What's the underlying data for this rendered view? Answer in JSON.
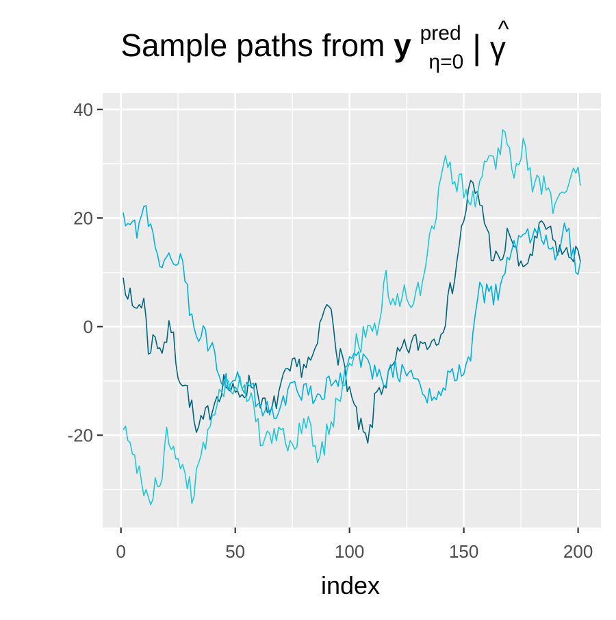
{
  "chart_data": {
    "type": "line",
    "title": {
      "prefix": "Sample paths from ",
      "symbol": "y",
      "superscript": "pred",
      "subscript": "η=0",
      "condition_bar": "|",
      "conditioned_on": "γ",
      "hat": "^"
    },
    "xlabel": "index",
    "ylabel": "",
    "xlim": [
      -8,
      210
    ],
    "ylim": [
      -37,
      43
    ],
    "x_ticks": [
      0,
      50,
      100,
      150,
      200
    ],
    "x_tick_labels": [
      "0",
      "50",
      "100",
      "150",
      "200"
    ],
    "y_ticks": [
      40,
      20,
      0,
      -20
    ],
    "y_tick_labels": [
      "40",
      "20",
      "0",
      "-20"
    ],
    "grid": true,
    "legend": "none",
    "panel_background": "#ebebeb",
    "grid_color": "#ffffff",
    "series": [
      {
        "color": "#00647f",
        "anchors": [
          [
            1,
            9
          ],
          [
            3,
            7
          ],
          [
            5,
            3
          ],
          [
            10,
            5
          ],
          [
            12,
            -4
          ],
          [
            15,
            -2
          ],
          [
            18,
            -4
          ],
          [
            22,
            0
          ],
          [
            25,
            -8
          ],
          [
            30,
            -13
          ],
          [
            33,
            -20
          ],
          [
            38,
            -16
          ],
          [
            45,
            -10
          ],
          [
            50,
            -13
          ],
          [
            58,
            -10
          ],
          [
            65,
            -17
          ],
          [
            70,
            -11
          ],
          [
            75,
            -8
          ],
          [
            80,
            -7
          ],
          [
            85,
            -6
          ],
          [
            88,
            2
          ],
          [
            92,
            4
          ],
          [
            95,
            -5
          ],
          [
            98,
            -8
          ],
          [
            103,
            -17
          ],
          [
            108,
            -22
          ],
          [
            112,
            -12
          ],
          [
            118,
            -9
          ],
          [
            122,
            -5
          ],
          [
            128,
            -3
          ],
          [
            133,
            -3
          ],
          [
            138,
            -2
          ],
          [
            142,
            2
          ],
          [
            146,
            10
          ],
          [
            150,
            20
          ],
          [
            153,
            26
          ],
          [
            158,
            22
          ],
          [
            162,
            14
          ],
          [
            166,
            11
          ],
          [
            170,
            18
          ],
          [
            175,
            10
          ],
          [
            180,
            14
          ],
          [
            185,
            19
          ],
          [
            190,
            15
          ],
          [
            195,
            13
          ],
          [
            199,
            14
          ],
          [
            201,
            12
          ]
        ],
        "noise": 2.2,
        "seed": 7
      },
      {
        "color": "#00b0e0",
        "anchors": [
          [
            1,
            21
          ],
          [
            4,
            19
          ],
          [
            7,
            17
          ],
          [
            10,
            22
          ],
          [
            13,
            19
          ],
          [
            16,
            13
          ],
          [
            20,
            12
          ],
          [
            24,
            13
          ],
          [
            27,
            13
          ],
          [
            30,
            3
          ],
          [
            32,
            -2
          ],
          [
            35,
            -1
          ],
          [
            39,
            -3
          ],
          [
            42,
            -8
          ],
          [
            45,
            -10
          ],
          [
            52,
            -10
          ],
          [
            58,
            -12
          ],
          [
            62,
            -15
          ],
          [
            70,
            -15
          ],
          [
            75,
            -10
          ],
          [
            80,
            -12
          ],
          [
            85,
            -13
          ],
          [
            90,
            -11
          ],
          [
            96,
            -10
          ],
          [
            100,
            -6
          ],
          [
            105,
            -6
          ],
          [
            110,
            -8
          ],
          [
            115,
            -10
          ],
          [
            120,
            -8
          ],
          [
            125,
            -9
          ],
          [
            130,
            -10
          ],
          [
            135,
            -13
          ],
          [
            140,
            -11
          ],
          [
            145,
            -9
          ],
          [
            150,
            -9
          ],
          [
            153,
            -5
          ],
          [
            156,
            7
          ],
          [
            160,
            6
          ],
          [
            165,
            6
          ],
          [
            170,
            12
          ],
          [
            175,
            17
          ],
          [
            180,
            17
          ],
          [
            185,
            16
          ],
          [
            190,
            14
          ],
          [
            195,
            18
          ],
          [
            199,
            11
          ],
          [
            201,
            12
          ]
        ],
        "noise": 2.0,
        "seed": 19
      },
      {
        "color": "#1ec8d8",
        "anchors": [
          [
            1,
            -19
          ],
          [
            4,
            -22
          ],
          [
            7,
            -27
          ],
          [
            10,
            -29
          ],
          [
            12,
            -33
          ],
          [
            15,
            -30
          ],
          [
            18,
            -27
          ],
          [
            20,
            -20
          ],
          [
            24,
            -23
          ],
          [
            28,
            -26
          ],
          [
            31,
            -31
          ],
          [
            34,
            -25
          ],
          [
            38,
            -20
          ],
          [
            42,
            -13
          ],
          [
            47,
            -11
          ],
          [
            52,
            -9
          ],
          [
            57,
            -14
          ],
          [
            61,
            -20
          ],
          [
            66,
            -22
          ],
          [
            70,
            -18
          ],
          [
            74,
            -23
          ],
          [
            78,
            -20
          ],
          [
            82,
            -16
          ],
          [
            86,
            -26
          ],
          [
            90,
            -20
          ],
          [
            95,
            -14
          ],
          [
            100,
            -7
          ],
          [
            103,
            -3
          ],
          [
            107,
            -2
          ],
          [
            112,
            0
          ],
          [
            116,
            8
          ],
          [
            120,
            4
          ],
          [
            124,
            6
          ],
          [
            128,
            5
          ],
          [
            132,
            7
          ],
          [
            136,
            18
          ],
          [
            140,
            26
          ],
          [
            143,
            31
          ],
          [
            146,
            26
          ],
          [
            150,
            26
          ],
          [
            155,
            24
          ],
          [
            160,
            30
          ],
          [
            164,
            31
          ],
          [
            168,
            37
          ],
          [
            172,
            29
          ],
          [
            176,
            33
          ],
          [
            180,
            27
          ],
          [
            185,
            26
          ],
          [
            190,
            22
          ],
          [
            195,
            26
          ],
          [
            199,
            29
          ],
          [
            201,
            26
          ]
        ],
        "noise": 2.4,
        "seed": 41
      }
    ]
  }
}
